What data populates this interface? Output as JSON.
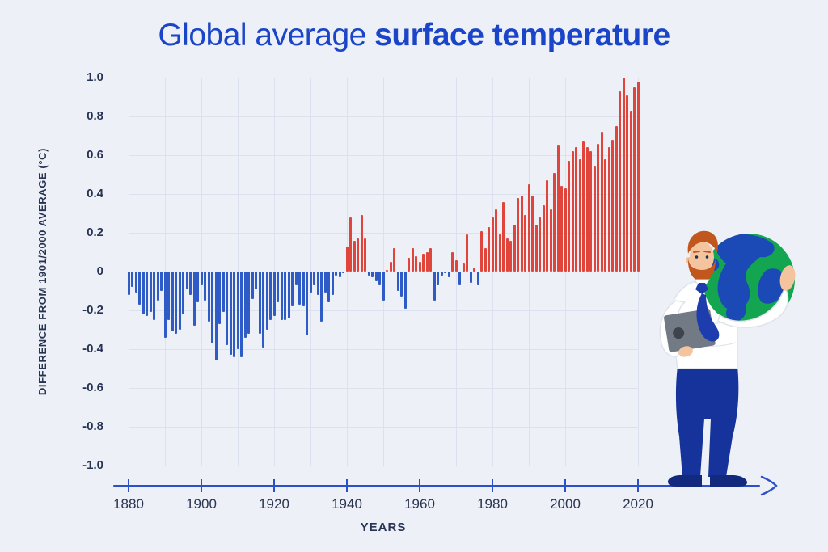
{
  "title": {
    "regular": "Global average ",
    "bold": "surface temperature"
  },
  "chart_data": {
    "type": "bar",
    "title": "Global average surface temperature",
    "xlabel": "YEARS",
    "ylabel": "DIFFERENCE FROM 1901/2000 AVERAGE (°C)",
    "ylim": [
      -1.0,
      1.0
    ],
    "grid": true,
    "legend": false,
    "positive_color": "#e0453c",
    "negative_color": "#2e5bc6",
    "y_ticks": [
      "1.0",
      "0.8",
      "0.6",
      "0.4",
      "0.2",
      "0",
      "-0.2",
      "-0.4",
      "-0.6",
      "-0.8",
      "-1.0"
    ],
    "x_ticks": [
      "1880",
      "1900",
      "1920",
      "1940",
      "1960",
      "1980",
      "2000",
      "2020"
    ],
    "years": [
      1880,
      1881,
      1882,
      1883,
      1884,
      1885,
      1886,
      1887,
      1888,
      1889,
      1890,
      1891,
      1892,
      1893,
      1894,
      1895,
      1896,
      1897,
      1898,
      1899,
      1900,
      1901,
      1902,
      1903,
      1904,
      1905,
      1906,
      1907,
      1908,
      1909,
      1910,
      1911,
      1912,
      1913,
      1914,
      1915,
      1916,
      1917,
      1918,
      1919,
      1920,
      1921,
      1922,
      1923,
      1924,
      1925,
      1926,
      1927,
      1928,
      1929,
      1930,
      1931,
      1932,
      1933,
      1934,
      1935,
      1936,
      1937,
      1938,
      1939,
      1940,
      1941,
      1942,
      1943,
      1944,
      1945,
      1946,
      1947,
      1948,
      1949,
      1950,
      1951,
      1952,
      1953,
      1954,
      1955,
      1956,
      1957,
      1958,
      1959,
      1960,
      1961,
      1962,
      1963,
      1964,
      1965,
      1966,
      1967,
      1968,
      1969,
      1970,
      1971,
      1972,
      1973,
      1974,
      1975,
      1976,
      1977,
      1978,
      1979,
      1980,
      1981,
      1982,
      1983,
      1984,
      1985,
      1986,
      1987,
      1988,
      1989,
      1990,
      1991,
      1992,
      1993,
      1994,
      1995,
      1996,
      1997,
      1998,
      1999,
      2000,
      2001,
      2002,
      2003,
      2004,
      2005,
      2006,
      2007,
      2008,
      2009,
      2010,
      2011,
      2012,
      2013,
      2014,
      2015,
      2016,
      2017,
      2018,
      2019,
      2020
    ],
    "values": [
      -0.12,
      -0.08,
      -0.11,
      -0.17,
      -0.22,
      -0.23,
      -0.21,
      -0.25,
      -0.15,
      -0.1,
      -0.34,
      -0.25,
      -0.31,
      -0.32,
      -0.3,
      -0.22,
      -0.09,
      -0.12,
      -0.28,
      -0.16,
      -0.07,
      -0.15,
      -0.26,
      -0.37,
      -0.46,
      -0.27,
      -0.21,
      -0.38,
      -0.43,
      -0.44,
      -0.4,
      -0.44,
      -0.34,
      -0.32,
      -0.14,
      -0.09,
      -0.32,
      -0.39,
      -0.3,
      -0.25,
      -0.23,
      -0.16,
      -0.25,
      -0.25,
      -0.24,
      -0.18,
      -0.07,
      -0.17,
      -0.18,
      -0.33,
      -0.11,
      -0.07,
      -0.12,
      -0.26,
      -0.11,
      -0.16,
      -0.12,
      -0.02,
      -0.03,
      -0.01,
      0.13,
      0.28,
      0.16,
      0.17,
      0.29,
      0.17,
      -0.02,
      -0.03,
      -0.05,
      -0.07,
      -0.15,
      0.01,
      0.05,
      0.12,
      -0.1,
      -0.13,
      -0.19,
      0.07,
      0.12,
      0.08,
      0.05,
      0.09,
      0.1,
      0.12,
      -0.15,
      -0.07,
      -0.02,
      -0.01,
      -0.03,
      0.1,
      0.06,
      -0.07,
      0.04,
      0.19,
      -0.06,
      0.02,
      -0.07,
      0.21,
      0.12,
      0.23,
      0.28,
      0.32,
      0.19,
      0.36,
      0.17,
      0.16,
      0.24,
      0.38,
      0.39,
      0.29,
      0.45,
      0.39,
      0.24,
      0.28,
      0.34,
      0.47,
      0.32,
      0.51,
      0.65,
      0.44,
      0.43,
      0.57,
      0.62,
      0.64,
      0.58,
      0.67,
      0.64,
      0.62,
      0.54,
      0.66,
      0.72,
      0.58,
      0.64,
      0.68,
      0.75,
      0.93,
      1.0,
      0.91,
      0.83,
      0.95,
      0.98
    ]
  },
  "colors": {
    "background": "#edf0f6",
    "title_blue": "#1b45c8",
    "axis_line": "#2b50c8",
    "text_dark": "#273352",
    "grid_line": "#dbe1ed"
  },
  "illustration": {
    "description": "Man with orange hair and beard holding Earth globe on shoulder and a laptop, standing on timeline arrow",
    "colors": {
      "hair": "#c2571d",
      "skin": "#f3c49e",
      "shirt": "#ffffff",
      "shirt_line": "#dfe3ea",
      "tie": "#1d3cae",
      "pants": "#16339b",
      "shoes": "#13297e",
      "laptop": "#727a86",
      "laptop_logo": "#3e434c",
      "globe_green": "#14a551",
      "globe_blue": "#1b49b5"
    }
  }
}
